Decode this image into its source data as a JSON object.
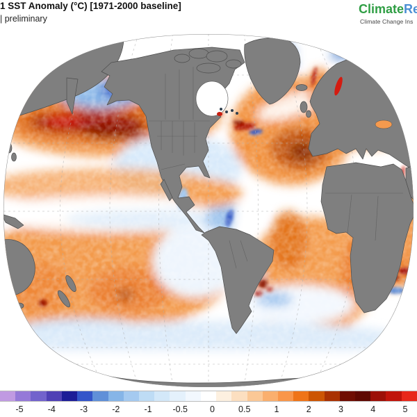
{
  "header": {
    "title": "1 SST Anomaly (°C) [1971-2000 baseline]",
    "subtitle": "| preliminary"
  },
  "brand": {
    "name_green": "Climate",
    "name_blue": "Re",
    "tagline": "Climate Change Ins",
    "color_green": "#2f9e44",
    "color_blue": "#4b8fd4"
  },
  "chart_data": {
    "type": "heatmap",
    "title": "1 SST Anomaly (°C) [1971-2000 baseline]",
    "subtitle": "| preliminary",
    "units": "°C",
    "projection": "Robinson-like world ellipse, Americas-centered",
    "land_color": "#7f7f7f",
    "ice_no_data_color": "#ffffff",
    "grid": "dashed gray graticule, 30-degree spacing",
    "colorbar": {
      "position": "bottom, full width",
      "tick_labels": [
        "-5",
        "-4",
        "-3",
        "-2",
        "-1",
        "-0.5",
        "0",
        "0.5",
        "1",
        "2",
        "3",
        "4",
        "5"
      ],
      "tick_values": [
        -5,
        -4,
        -3,
        -2,
        -1,
        -0.5,
        0,
        0.5,
        1,
        2,
        3,
        4,
        5
      ],
      "segment_colors": [
        "#c09ae2",
        "#9579d8",
        "#7263cc",
        "#4f41b5",
        "#1d1d97",
        "#3355c9",
        "#6090d8",
        "#86b5e7",
        "#a5caf0",
        "#bedcf5",
        "#d3e8f9",
        "#e4f1fc",
        "#f2f8fe",
        "#ffffff",
        "#fdf0e0",
        "#fcdfc0",
        "#fbc896",
        "#faaf6e",
        "#f9964a",
        "#ef7418",
        "#cc5503",
        "#a93102",
        "#6f0d02",
        "#5e0801",
        "#9c1008",
        "#c0140b",
        "#e8281a"
      ]
    },
    "features": [
      {
        "region": "Central North Pacific (~40N) marine heatwave",
        "anomaly_c": "+3 to +4.5"
      },
      {
        "region": "Gulf of Alaska / Bering Sea",
        "anomaly_c": "-1 to -2.5"
      },
      {
        "region": "Northeast Pacific off California / Baja",
        "anomaly_c": "-0.5 to -1.5"
      },
      {
        "region": "Equatorial Pacific cold tongue band",
        "anomaly_c": "0 to -0.5"
      },
      {
        "region": "Peru-Chile coastal upwelling",
        "anomaly_c": "-1 to -2.5"
      },
      {
        "region": "Subtropical South Pacific warm patch",
        "anomaly_c": "+1 to +2.5"
      },
      {
        "region": "North Atlantic subtropical warm pool with dark core",
        "anomaly_c": "+1 to +3.5"
      },
      {
        "region": "Gulf Stream eddies off NE United States",
        "anomaly_c": "mixed +3 / -2"
      },
      {
        "region": "Baltic Sea and Norwegian coast",
        "anomaly_c": "+4 to +5"
      },
      {
        "region": "Mediterranean Sea",
        "anomaly_c": "+1 to +2.5"
      },
      {
        "region": "South Atlantic",
        "anomaly_c": "+1 to +2"
      },
      {
        "region": "Argentine shelf eddies",
        "anomaly_c": "mixed +4 / -2"
      },
      {
        "region": "Agulhas retroflection south of Africa",
        "anomaly_c": "mixed +4 / -3"
      },
      {
        "region": "Southern Ocean 50-60S",
        "anomaly_c": "-0.5 to +0.5"
      },
      {
        "region": "Antarctic sea-ice zone and Arctic",
        "anomaly_c": "no data (white)"
      }
    ]
  }
}
